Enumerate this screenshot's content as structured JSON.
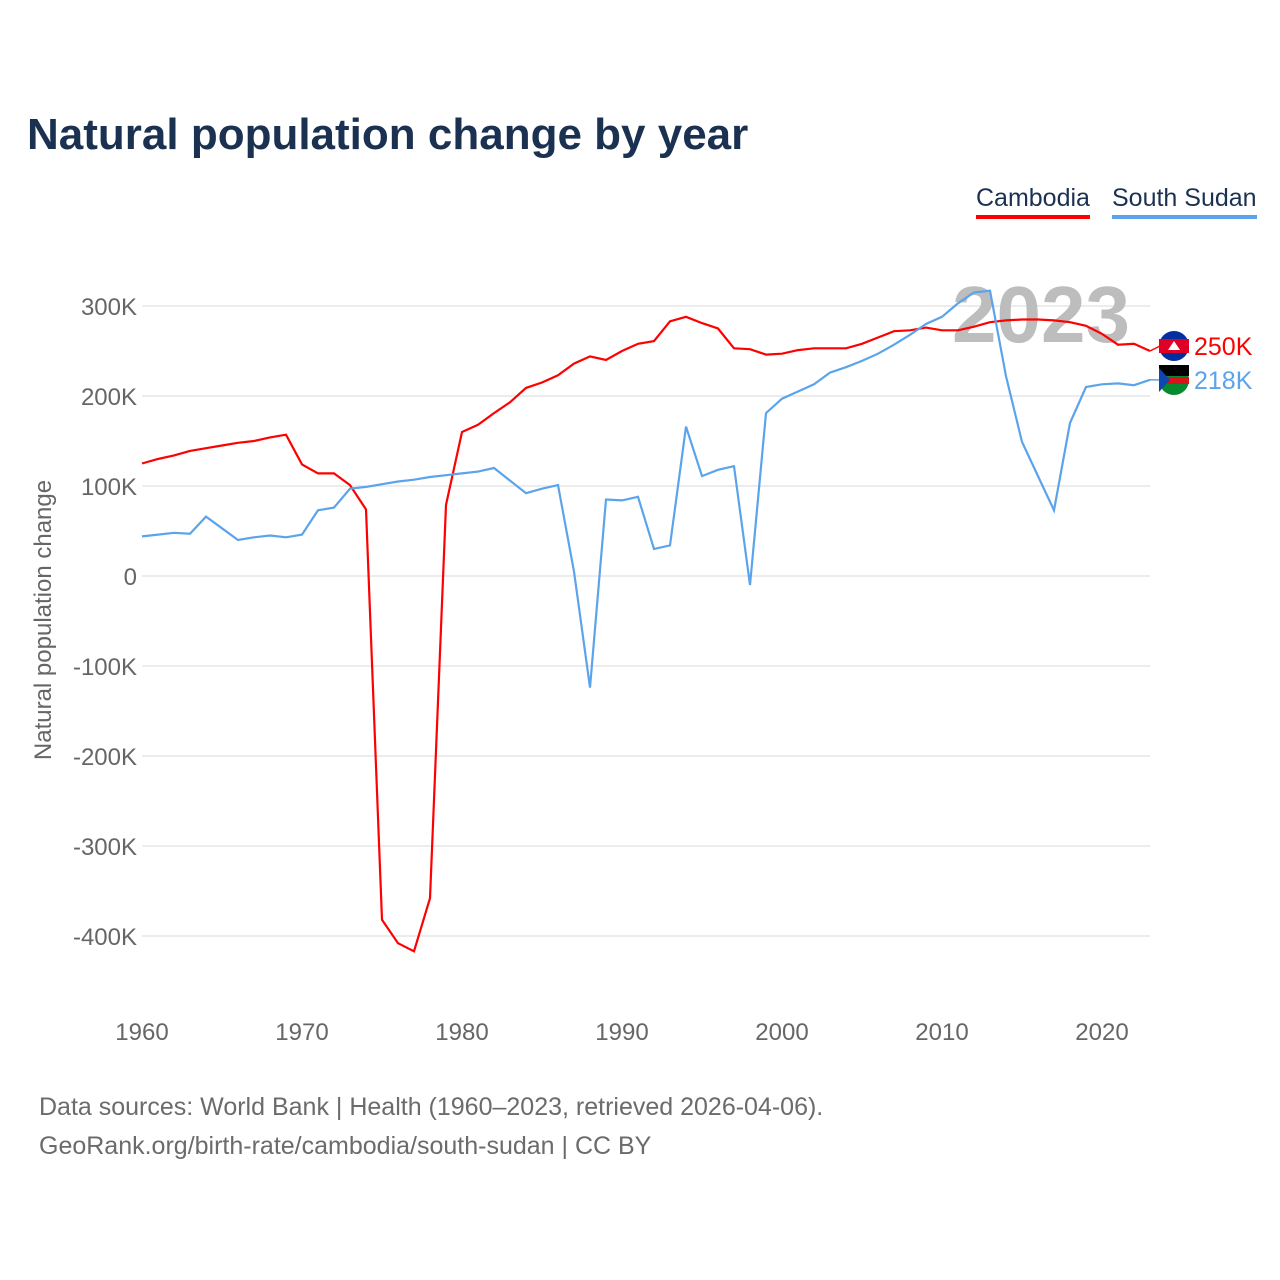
{
  "chart_data": {
    "type": "line",
    "title": "Natural population change by year",
    "xlabel": "",
    "ylabel": "Natural population change",
    "xlim": [
      1960,
      2023
    ],
    "ylim": [
      -450000,
      330000
    ],
    "x_ticks": [
      "1960",
      "1970",
      "1980",
      "1990",
      "2000",
      "2010",
      "2020"
    ],
    "y_ticks": [
      {
        "v": 300000,
        "label": "300K"
      },
      {
        "v": 200000,
        "label": "200K"
      },
      {
        "v": 100000,
        "label": "100K"
      },
      {
        "v": 0,
        "label": "0"
      },
      {
        "v": -100000,
        "label": "-100K"
      },
      {
        "v": -200000,
        "label": "-200K"
      },
      {
        "v": -300000,
        "label": "-300K"
      },
      {
        "v": -400000,
        "label": "-400K"
      }
    ],
    "grid": true,
    "legend_position": "top-right",
    "year_watermark": "2023",
    "series": [
      {
        "name": "Cambodia",
        "color": "#ff0000",
        "end_label": "250K",
        "values": [
          125,
          130,
          134,
          139,
          142,
          145,
          148,
          150,
          154,
          157,
          124,
          114,
          114,
          101,
          74,
          -382,
          -408,
          -417,
          -358,
          79,
          160,
          168,
          181,
          193,
          209,
          215,
          223,
          236,
          244,
          240,
          250,
          258,
          261,
          283,
          288,
          281,
          275,
          253,
          252,
          246,
          247,
          251,
          253,
          253,
          253,
          258,
          265,
          272,
          273,
          276,
          273,
          273,
          277,
          282,
          284,
          285,
          285,
          284,
          282,
          278,
          269,
          257,
          258,
          250
        ]
      },
      {
        "name": "South Sudan",
        "color": "#5ba4ec",
        "end_label": "218K",
        "values": [
          44,
          46,
          48,
          47,
          66,
          53,
          40,
          43,
          45,
          43,
          46,
          73,
          76,
          97,
          99,
          102,
          105,
          107,
          110,
          112,
          114,
          116,
          120,
          106,
          92,
          97,
          101,
          5,
          -124,
          85,
          84,
          88,
          30,
          34,
          166,
          111,
          118,
          122,
          -10,
          181,
          197,
          205,
          213,
          226,
          232,
          239,
          247,
          257,
          268,
          280,
          288,
          303,
          315,
          317,
          222,
          149,
          111,
          73,
          170,
          210,
          213,
          214,
          212,
          218
        ]
      }
    ],
    "value_unit": "thousands"
  },
  "footer": {
    "line1": "Data sources: World Bank | Health (1960–2023, retrieved 2026-04-06).",
    "line2": "GeoRank.org/birth-rate/cambodia/south-sudan | CC BY"
  }
}
